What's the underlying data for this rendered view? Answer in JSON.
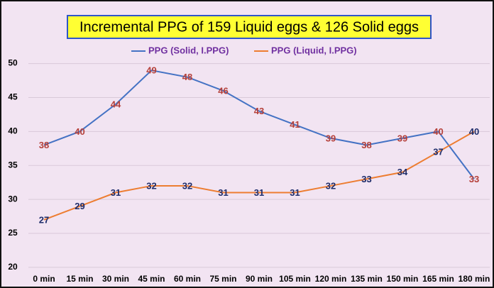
{
  "chart_data": {
    "type": "line",
    "title": "Incremental PPG of 159 Liquid eggs & 126 Solid eggs",
    "categories": [
      "0 min",
      "15 min",
      "30 min",
      "45 min",
      "60 min",
      "75 min",
      "90 min",
      "105 min",
      "120 min",
      "135 min",
      "150 min",
      "165 min",
      "180 min"
    ],
    "series": [
      {
        "name": "PPG (Solid, I.PPG)",
        "color": "#4472c4",
        "label_color": "#b5403a",
        "values": [
          38,
          40,
          44,
          49,
          48,
          46,
          43,
          41,
          39,
          38,
          39,
          40,
          33
        ]
      },
      {
        "name": "PPG (Liquid, I.PPG)",
        "color": "#ed7d31",
        "label_color": "#1f2d6b",
        "values": [
          27,
          29,
          31,
          32,
          32,
          31,
          31,
          31,
          32,
          33,
          34,
          37,
          40
        ]
      }
    ],
    "ylim": [
      18,
      51
    ],
    "yticks": [
      20,
      25,
      30,
      35,
      40,
      45,
      50
    ],
    "grid": true,
    "legend": "top"
  }
}
